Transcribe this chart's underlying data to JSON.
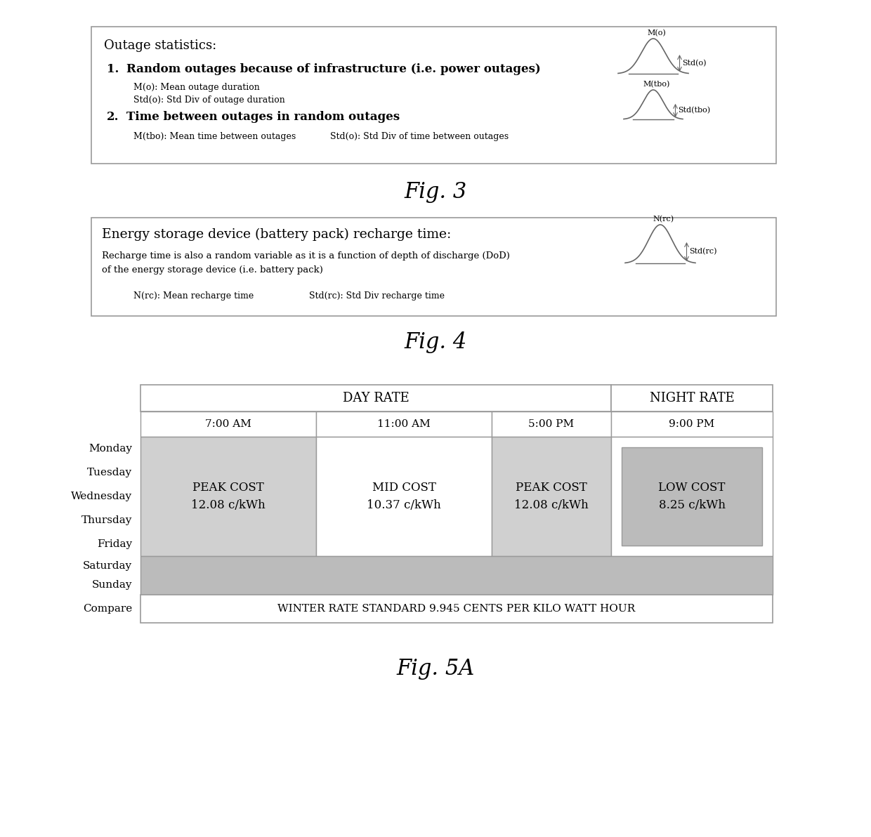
{
  "fig3_title": "Outage statistics:",
  "fig3_item1_bold": "Random outages because of infrastructure (i.e. power outages)",
  "fig3_item1_line1": "M(o): Mean outage duration",
  "fig3_item1_line2": "Std(o): Std Div of outage duration",
  "fig3_item2_bold": "Time between outages in random outages",
  "fig3_item2_line1_a": "M(tbo): Mean time between outages",
  "fig3_item2_line1_b": "Std(o): Std Div of time between outages",
  "fig3_curve1_label": "M(o)",
  "fig3_curve1_brace": "Std(o)",
  "fig3_curve2_label": "M(tbo)",
  "fig3_curve2_brace": "Std(tbo)",
  "fig4_title": "Energy storage device (battery pack) recharge time:",
  "fig4_line1": "Recharge time is also a random variable as it is a function of depth of discharge (DoD)",
  "fig4_line2": "of the energy storage device (i.e. battery pack)",
  "fig4_bottom_a": "N(rc): Mean recharge time",
  "fig4_bottom_b": "Std(rc): Std Div recharge time",
  "fig4_curve_label": "N(rc)",
  "fig4_curve_brace": "Std(rc)",
  "fig5_header_day": "DAY RATE",
  "fig5_header_night": "NIGHT RATE",
  "fig5_col1": "7:00 AM",
  "fig5_col2": "11:00 AM",
  "fig5_col3": "5:00 PM",
  "fig5_col4": "9:00 PM",
  "fig5_days": [
    "Monday",
    "Tuesday",
    "Wednesday",
    "Thursday",
    "Friday",
    "Saturday",
    "Sunday",
    "Compare"
  ],
  "fig5_peak1": "PEAK COST\n12.08 c/kWh",
  "fig5_mid": "MID COST\n10.37 c/kWh",
  "fig5_peak2": "PEAK COST\n12.08 c/kWh",
  "fig5_low": "LOW COST\n8.25 c/kWh",
  "fig5_winter": "WINTER RATE STANDARD 9.945 CENTS PER KILO WATT HOUR",
  "fig_label3": "Fig. 3",
  "fig_label4": "Fig. 4",
  "fig_label5": "Fig. 5A",
  "bg_color": "#ffffff",
  "box_edge_color": "#999999",
  "text_color": "#000000",
  "shade_light": "#d0d0d0",
  "shade_dark": "#bbbbbb"
}
